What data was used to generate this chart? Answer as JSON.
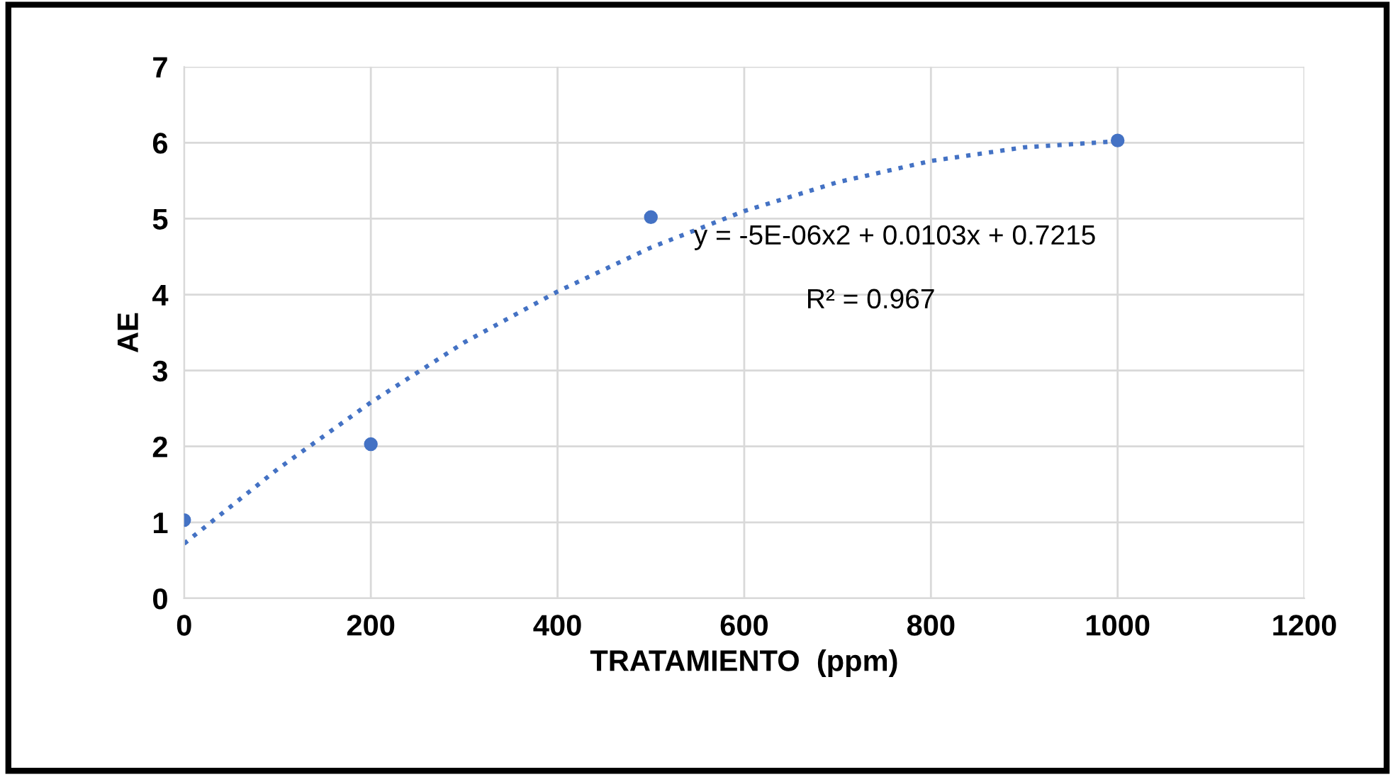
{
  "chart_data": {
    "type": "scatter",
    "xlabel": "TRATAMIENTO  (ppm)",
    "ylabel": "AE",
    "xlim": [
      0,
      1200
    ],
    "xticks": [
      0,
      200,
      400,
      600,
      800,
      1000,
      1200
    ],
    "ylim": [
      0,
      7
    ],
    "yticks": [
      0,
      1,
      2,
      3,
      4,
      5,
      6,
      7
    ],
    "grid": true,
    "series": [
      {
        "marker": "circle",
        "color": "#4472c4",
        "x": [
          0,
          200,
          500,
          1000
        ],
        "values": [
          1.03,
          2.03,
          5.02,
          6.03
        ]
      },
      {
        "type": "line",
        "marker": "none",
        "line_style": "dotted",
        "color": "#4472c4",
        "x": [
          0,
          100,
          200,
          300,
          400,
          500,
          600,
          700,
          800,
          900,
          1000
        ],
        "values": [
          0.72,
          1.7,
          2.58,
          3.37,
          4.04,
          4.62,
          5.1,
          5.48,
          5.76,
          5.94,
          6.02
        ]
      }
    ],
    "annotations": [
      "y = -5E-06x2 + 0.0103x + 0.7215",
      "R² = 0.967"
    ]
  }
}
